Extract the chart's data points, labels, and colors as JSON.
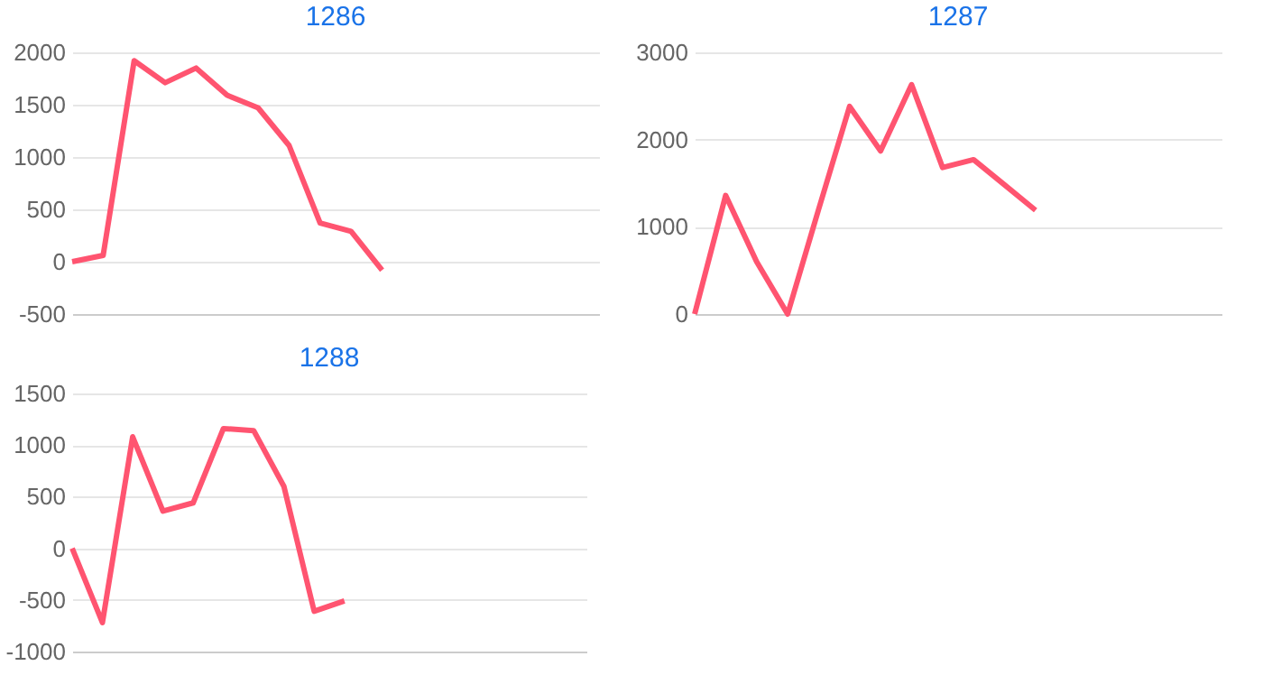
{
  "chart_data": [
    {
      "type": "line",
      "title": "1286",
      "categories": [
        null,
        null,
        null,
        null,
        null,
        null,
        null,
        null,
        null,
        null,
        null,
        null,
        null,
        null,
        null,
        null,
        null,
        null
      ],
      "values": [
        0,
        60,
        1920,
        1710,
        1850,
        1590,
        1470,
        1110,
        370,
        290,
        -80,
        null,
        null,
        null,
        null,
        null,
        null,
        null
      ],
      "color": "#ff5470",
      "ylim": [
        -500,
        2000
      ],
      "yticks": [
        -500,
        0,
        500,
        1000,
        1500,
        2000
      ],
      "grid": "y",
      "tick_labels": "y"
    },
    {
      "type": "line",
      "title": "1287",
      "categories": [
        null,
        null,
        null,
        null,
        null,
        null,
        null,
        null,
        null,
        null,
        null,
        null,
        null,
        null,
        null,
        null,
        null,
        null
      ],
      "values": [
        0,
        1360,
        600,
        0,
        1200,
        2380,
        1870,
        2630,
        1680,
        1770,
        1480,
        1190,
        null,
        null,
        null,
        null,
        null,
        null
      ],
      "color": "#ff5470",
      "ylim": [
        0,
        3000
      ],
      "yticks": [
        0,
        1000,
        2000,
        3000
      ],
      "grid": "y",
      "tick_labels": "y"
    },
    {
      "type": "line",
      "title": "1288",
      "categories": [
        null,
        null,
        null,
        null,
        null,
        null,
        null,
        null,
        null,
        null,
        null,
        null,
        null,
        null,
        null,
        null,
        null,
        null
      ],
      "values": [
        0,
        -720,
        1080,
        360,
        440,
        1160,
        1140,
        600,
        -610,
        -510,
        null,
        null,
        null,
        null,
        null,
        null,
        null,
        null
      ],
      "color": "#ff5470",
      "ylim": [
        -1000,
        1500
      ],
      "yticks": [
        -1000,
        -500,
        0,
        500,
        1000,
        1500
      ],
      "grid": "y",
      "tick_labels": "y"
    }
  ]
}
